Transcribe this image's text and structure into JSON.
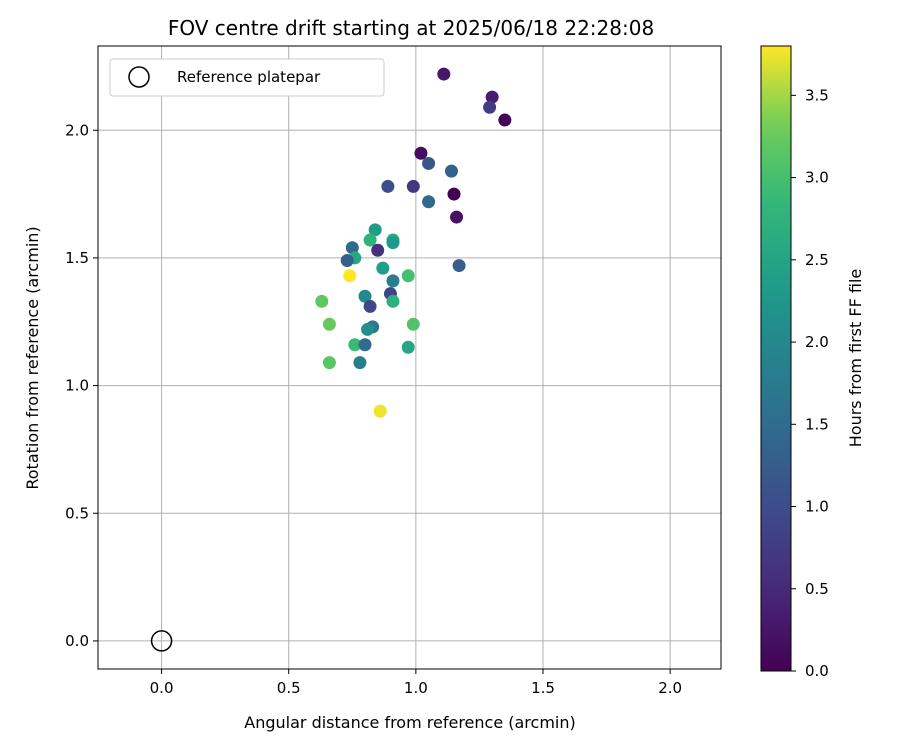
{
  "chart_data": {
    "type": "scatter",
    "title": "FOV centre drift starting at 2025/06/18 22:28:08",
    "xlabel": "Angular distance from reference (arcmin)",
    "ylabel": "Rotation from reference (arcmin)",
    "xlim": [
      -0.25,
      2.2
    ],
    "ylim": [
      -0.11,
      2.33
    ],
    "grid": true,
    "x_ticks": [
      "0.0",
      "0.5",
      "1.0",
      "1.5",
      "2.0"
    ],
    "y_ticks": [
      "0.0",
      "0.5",
      "1.0",
      "1.5",
      "2.0"
    ],
    "legend": {
      "position": "top-left",
      "entries": [
        "Reference platepar"
      ]
    },
    "reference_point": {
      "x": 0.0,
      "y": 0.0
    },
    "colorbar": {
      "label": "Hours from first FF file",
      "range": [
        0.0,
        3.8
      ],
      "ticks": [
        "0.0",
        "0.5",
        "1.0",
        "1.5",
        "2.0",
        "2.5",
        "3.0",
        "3.5"
      ],
      "colormap": "viridis"
    },
    "points": [
      {
        "x": 1.11,
        "y": 2.22,
        "hours": 0.25
      },
      {
        "x": 1.3,
        "y": 2.13,
        "hours": 0.35
      },
      {
        "x": 1.29,
        "y": 2.09,
        "hours": 0.75
      },
      {
        "x": 1.35,
        "y": 2.04,
        "hours": 0.05
      },
      {
        "x": 1.02,
        "y": 1.91,
        "hours": 0.15
      },
      {
        "x": 1.05,
        "y": 1.87,
        "hours": 1.15
      },
      {
        "x": 1.14,
        "y": 1.84,
        "hours": 1.35
      },
      {
        "x": 0.89,
        "y": 1.78,
        "hours": 1.0
      },
      {
        "x": 0.99,
        "y": 1.78,
        "hours": 0.7
      },
      {
        "x": 1.15,
        "y": 1.75,
        "hours": 0.0
      },
      {
        "x": 1.05,
        "y": 1.72,
        "hours": 1.45
      },
      {
        "x": 1.16,
        "y": 1.66,
        "hours": 0.2
      },
      {
        "x": 0.84,
        "y": 1.61,
        "hours": 2.35
      },
      {
        "x": 0.82,
        "y": 1.57,
        "hours": 2.75
      },
      {
        "x": 0.91,
        "y": 1.57,
        "hours": 2.6
      },
      {
        "x": 0.91,
        "y": 1.56,
        "hours": 2.3
      },
      {
        "x": 0.75,
        "y": 1.54,
        "hours": 1.45
      },
      {
        "x": 0.85,
        "y": 1.53,
        "hours": 0.6
      },
      {
        "x": 0.76,
        "y": 1.5,
        "hours": 2.55
      },
      {
        "x": 0.73,
        "y": 1.49,
        "hours": 1.3
      },
      {
        "x": 1.17,
        "y": 1.47,
        "hours": 1.25
      },
      {
        "x": 0.87,
        "y": 1.46,
        "hours": 2.4
      },
      {
        "x": 0.74,
        "y": 1.43,
        "hours": 3.8
      },
      {
        "x": 0.97,
        "y": 1.43,
        "hours": 3.0
      },
      {
        "x": 0.91,
        "y": 1.41,
        "hours": 1.8
      },
      {
        "x": 0.9,
        "y": 1.36,
        "hours": 0.9
      },
      {
        "x": 0.8,
        "y": 1.35,
        "hours": 2.0
      },
      {
        "x": 0.63,
        "y": 1.33,
        "hours": 3.2
      },
      {
        "x": 0.91,
        "y": 1.33,
        "hours": 2.7
      },
      {
        "x": 0.82,
        "y": 1.31,
        "hours": 0.95
      },
      {
        "x": 0.66,
        "y": 1.24,
        "hours": 3.25
      },
      {
        "x": 0.99,
        "y": 1.24,
        "hours": 3.1
      },
      {
        "x": 0.83,
        "y": 1.23,
        "hours": 1.7
      },
      {
        "x": 0.81,
        "y": 1.22,
        "hours": 2.1
      },
      {
        "x": 0.76,
        "y": 1.16,
        "hours": 2.9
      },
      {
        "x": 0.8,
        "y": 1.16,
        "hours": 1.5
      },
      {
        "x": 0.97,
        "y": 1.15,
        "hours": 2.5
      },
      {
        "x": 0.66,
        "y": 1.09,
        "hours": 3.15
      },
      {
        "x": 0.78,
        "y": 1.09,
        "hours": 1.85
      },
      {
        "x": 0.86,
        "y": 0.9,
        "hours": 3.75
      }
    ]
  }
}
